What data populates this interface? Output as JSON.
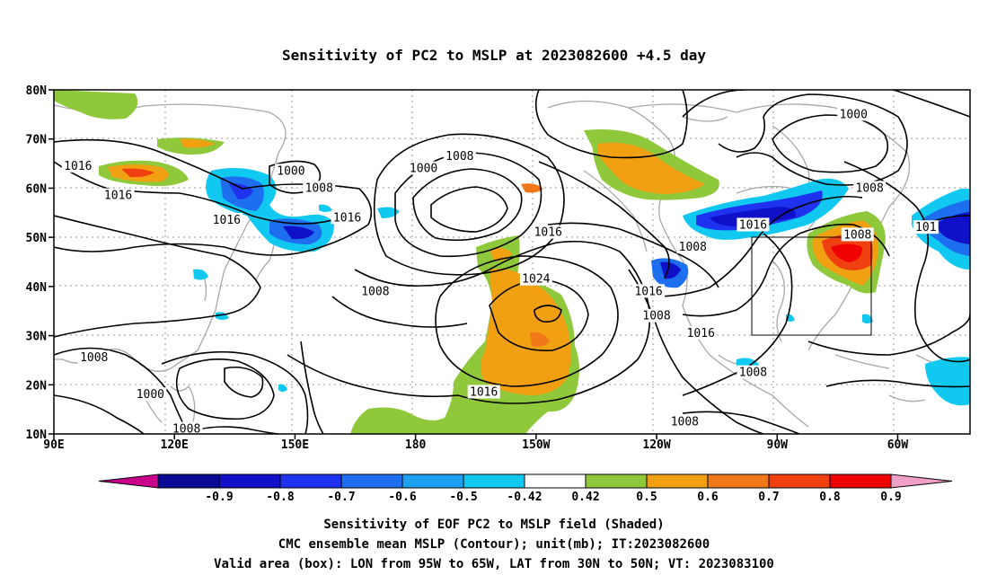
{
  "title": "Sensitivity of PC2 to MSLP at 2023082600 +4.5 day",
  "lat_labels": [
    "80N",
    "70N",
    "60N",
    "50N",
    "40N",
    "30N",
    "20N",
    "10N"
  ],
  "lon_labels": [
    "90E",
    "120E",
    "150E",
    "180",
    "150W",
    "120W",
    "90W",
    "60W"
  ],
  "contour_labels": [
    {
      "text": "1016",
      "lat": 64.5,
      "lon": 96
    },
    {
      "text": "1016",
      "lat": 58.5,
      "lon": 106
    },
    {
      "text": "1016",
      "lat": 53.5,
      "lon": 133
    },
    {
      "text": "1000",
      "lat": 63.5,
      "lon": 149
    },
    {
      "text": "1008",
      "lat": 60,
      "lon": 156
    },
    {
      "text": "1016",
      "lat": 54,
      "lon": 163
    },
    {
      "text": "1000",
      "lat": 64,
      "lon": -178
    },
    {
      "text": "1008",
      "lat": 66.5,
      "lon": -169
    },
    {
      "text": "1016",
      "lat": 51,
      "lon": -147
    },
    {
      "text": "1024",
      "lat": 41.5,
      "lon": -150
    },
    {
      "text": "1008",
      "lat": 39,
      "lon": -190
    },
    {
      "text": "1016",
      "lat": 39,
      "lon": -122
    },
    {
      "text": "1008",
      "lat": 34,
      "lon": -120
    },
    {
      "text": "1008",
      "lat": 48,
      "lon": -111
    },
    {
      "text": "1016",
      "lat": 30.5,
      "lon": -109
    },
    {
      "text": "1016",
      "lat": 52.5,
      "lon": -96
    },
    {
      "text": "1008",
      "lat": 60,
      "lon": -67
    },
    {
      "text": "1008",
      "lat": 50.5,
      "lon": -70
    },
    {
      "text": "1000",
      "lat": 75,
      "lon": -71
    },
    {
      "text": "1008",
      "lat": 22.5,
      "lon": -96
    },
    {
      "text": "1016",
      "lat": 18.5,
      "lon": -163
    },
    {
      "text": "1008",
      "lat": 25.5,
      "lon": 100
    },
    {
      "text": "1000",
      "lat": 18,
      "lon": 114
    },
    {
      "text": "1008",
      "lat": 11,
      "lon": 123
    },
    {
      "text": "1008",
      "lat": 12.5,
      "lon": -113
    },
    {
      "text": "101",
      "lat": 52,
      "lon": -53
    }
  ],
  "colorbar": {
    "labels": [
      "-0.9",
      "-0.8",
      "-0.7",
      "-0.6",
      "-0.5",
      "-0.42",
      "0.42",
      "0.5",
      "0.6",
      "0.7",
      "0.8",
      "0.9"
    ],
    "colors": [
      "#0a0a96",
      "#1010c8",
      "#1e32f0",
      "#1e6ef0",
      "#1ea0f0",
      "#10c8f0",
      "#ffffff",
      "#90c83c",
      "#f0a010",
      "#f07818",
      "#f04010",
      "#f00000"
    ],
    "end_low": "#c8008c",
    "end_high": "#f0a0c8"
  },
  "caption_lines": [
    "Sensitivity of EOF PC2 to MSLP field (Shaded)",
    "CMC ensemble mean MSLP (Contour); unit(mb); IT:2023082600",
    "Valid area (box): LON from 95W to 65W, LAT from 30N to 50N; VT: 2023083100"
  ]
}
